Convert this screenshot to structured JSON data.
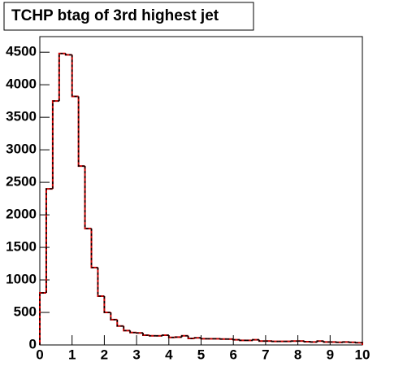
{
  "chart_data": {
    "type": "histogram",
    "title": "TCHP btag of 3rd highest jet",
    "bins": [
      0,
      0.2,
      0.4,
      0.6,
      0.8,
      1,
      1.2,
      1.4,
      1.6,
      1.8,
      2,
      2.2,
      2.4,
      2.6,
      2.8,
      3,
      3.2,
      3.4,
      3.6,
      3.8,
      4,
      4.2,
      4.4,
      4.6,
      4.8,
      5,
      5.2,
      5.4,
      5.6,
      5.8,
      6,
      6.2,
      6.4,
      6.6,
      6.8,
      7,
      7.2,
      7.4,
      7.6,
      7.8,
      8,
      8.2,
      8.4,
      8.6,
      8.8,
      9,
      9.2,
      9.4,
      9.6,
      9.8,
      10
    ],
    "counts": [
      800,
      2400,
      3750,
      4480,
      4460,
      3820,
      2750,
      1790,
      1190,
      750,
      500,
      390,
      290,
      220,
      190,
      185,
      150,
      140,
      140,
      150,
      115,
      120,
      140,
      100,
      110,
      95,
      95,
      95,
      90,
      90,
      80,
      70,
      70,
      80,
      60,
      60,
      55,
      55,
      55,
      60,
      60,
      50,
      45,
      60,
      45,
      45,
      40,
      45,
      40,
      35
    ],
    "colors": [
      "#cc0000",
      "#000000"
    ],
    "xlim": [
      0,
      10
    ],
    "xticks": [
      0,
      1,
      2,
      3,
      4,
      5,
      6,
      7,
      8,
      9,
      10
    ],
    "ylim": [
      0,
      4740
    ],
    "yticks": [
      0,
      500,
      1000,
      1500,
      2000,
      2500,
      3000,
      3500,
      4000,
      4500
    ]
  }
}
